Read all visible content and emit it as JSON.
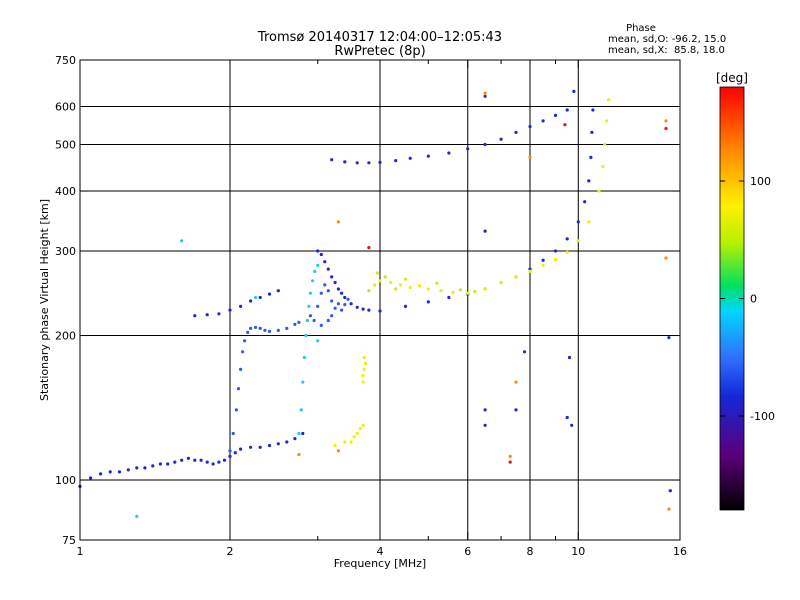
{
  "chart_data": {
    "type": "scatter",
    "title": "Tromsø 20140317 12:04:00–12:05:43",
    "subtitle": "RwPretec (8p)",
    "xlabel": "Frequency [MHz]",
    "ylabel": "Stationary phase Virtual Height [km]",
    "x_scale": "log",
    "y_scale": "log",
    "xlim": [
      1,
      16
    ],
    "ylim": [
      75,
      750
    ],
    "x_ticks": [
      1,
      2,
      4,
      6,
      8,
      10,
      16
    ],
    "x_minor_ticks": [
      3,
      5,
      7,
      9
    ],
    "y_ticks": [
      75,
      100,
      200,
      300,
      400,
      500,
      600,
      750
    ],
    "grid": true,
    "phase_info": {
      "title": "Phase",
      "line_o": "mean, sd,O: -96.2, 15.0",
      "line_x": "mean, sd,X:  85.8, 18.0"
    },
    "colorbar": {
      "label": "[deg]",
      "range": [
        -180,
        180
      ],
      "ticks": [
        100,
        0,
        -100
      ]
    },
    "color_key": {
      "dark_blue": "#1a28d8",
      "blue": "#2f5af0",
      "cyan": "#28c8ea",
      "yellow": "#f0f000",
      "yellow_green": "#c8e628",
      "orange": "#ff8c00",
      "red": "#e01414"
    },
    "series": [
      {
        "name": "",
        "color": "#1a28d8",
        "points": [
          [
            1.0,
            97
          ],
          [
            1.05,
            101
          ],
          [
            1.1,
            103
          ],
          [
            1.15,
            104
          ],
          [
            1.2,
            104
          ],
          [
            1.25,
            105
          ],
          [
            1.3,
            106
          ],
          [
            1.35,
            106
          ],
          [
            1.4,
            107
          ],
          [
            1.45,
            108
          ],
          [
            1.5,
            108
          ],
          [
            1.55,
            109
          ],
          [
            1.6,
            110
          ],
          [
            1.65,
            111
          ],
          [
            1.7,
            110
          ],
          [
            1.75,
            110
          ],
          [
            1.8,
            109
          ],
          [
            1.85,
            108
          ],
          [
            1.9,
            109
          ],
          [
            1.95,
            110
          ],
          [
            2.0,
            112
          ],
          [
            2.05,
            114
          ],
          [
            2.1,
            116
          ],
          [
            2.2,
            117
          ],
          [
            2.3,
            117
          ],
          [
            2.4,
            118
          ],
          [
            2.5,
            119
          ],
          [
            2.6,
            120
          ],
          [
            2.7,
            122
          ],
          [
            2.8,
            125
          ]
        ]
      },
      {
        "name": "",
        "color": "#2f5af0",
        "points": [
          [
            2.0,
            115
          ],
          [
            2.03,
            125
          ],
          [
            2.06,
            140
          ],
          [
            2.08,
            155
          ],
          [
            2.1,
            170
          ],
          [
            2.12,
            185
          ],
          [
            2.14,
            195
          ],
          [
            2.17,
            203
          ],
          [
            2.2,
            207
          ],
          [
            2.25,
            208
          ],
          [
            2.3,
            207
          ],
          [
            2.35,
            205
          ],
          [
            2.4,
            204
          ],
          [
            2.5,
            205
          ],
          [
            2.6,
            207
          ],
          [
            2.7,
            211
          ],
          [
            2.75,
            213
          ]
        ]
      },
      {
        "name": "",
        "color": "#1a28d8",
        "points": [
          [
            1.7,
            220
          ],
          [
            1.8,
            221
          ],
          [
            1.9,
            222
          ],
          [
            2.0,
            226
          ],
          [
            2.1,
            230
          ],
          [
            2.2,
            236
          ],
          [
            2.3,
            240
          ],
          [
            2.4,
            244
          ],
          [
            2.5,
            248
          ]
        ]
      },
      {
        "name": "",
        "color": "#28c8ea",
        "points": [
          [
            2.75,
            125
          ],
          [
            2.78,
            140
          ],
          [
            2.8,
            160
          ],
          [
            2.82,
            180
          ],
          [
            2.84,
            200
          ],
          [
            2.86,
            215
          ],
          [
            2.88,
            230
          ],
          [
            2.9,
            245
          ],
          [
            2.93,
            260
          ],
          [
            2.96,
            272
          ],
          [
            3.0,
            280
          ]
        ]
      },
      {
        "name": "",
        "color": "#1a28d8",
        "points": [
          [
            3.0,
            300
          ],
          [
            3.05,
            295
          ],
          [
            3.1,
            285
          ],
          [
            3.15,
            275
          ],
          [
            3.2,
            265
          ],
          [
            3.25,
            258
          ],
          [
            3.3,
            250
          ],
          [
            3.35,
            245
          ],
          [
            3.4,
            240
          ],
          [
            3.5,
            233
          ],
          [
            3.6,
            229
          ],
          [
            3.7,
            227
          ],
          [
            3.8,
            226
          ],
          [
            4.0,
            225
          ],
          [
            4.5,
            230
          ],
          [
            5.0,
            235
          ],
          [
            5.5,
            240
          ],
          [
            6.0,
            244
          ],
          [
            6.5,
            250
          ],
          [
            7.0,
            258
          ],
          [
            7.5,
            265
          ],
          [
            8.0,
            275
          ],
          [
            8.5,
            287
          ],
          [
            9.0,
            300
          ],
          [
            9.5,
            318
          ],
          [
            10.0,
            345
          ],
          [
            10.3,
            380
          ],
          [
            10.5,
            420
          ],
          [
            10.6,
            470
          ],
          [
            10.65,
            530
          ],
          [
            10.7,
            590
          ]
        ]
      },
      {
        "name": "",
        "color": "#2f5af0",
        "points": [
          [
            2.9,
            220
          ],
          [
            2.95,
            215
          ],
          [
            3.0,
            230
          ],
          [
            3.05,
            245
          ],
          [
            3.1,
            255
          ],
          [
            3.15,
            248
          ],
          [
            3.2,
            236
          ],
          [
            3.25,
            228
          ],
          [
            3.3,
            233
          ],
          [
            3.35,
            226
          ],
          [
            3.05,
            210
          ],
          [
            3.15,
            215
          ],
          [
            3.2,
            220
          ],
          [
            3.4,
            232
          ],
          [
            3.45,
            238
          ]
        ]
      },
      {
        "name": "",
        "color": "#1a28d8",
        "points": [
          [
            3.2,
            465
          ],
          [
            3.4,
            460
          ],
          [
            3.6,
            458
          ],
          [
            3.8,
            458
          ],
          [
            4.0,
            459
          ],
          [
            4.3,
            463
          ],
          [
            4.6,
            468
          ],
          [
            5.0,
            473
          ],
          [
            5.5,
            480
          ],
          [
            6.0,
            490
          ],
          [
            6.5,
            500
          ],
          [
            7.0,
            513
          ],
          [
            7.5,
            530
          ],
          [
            8.0,
            545
          ],
          [
            8.5,
            560
          ],
          [
            9.0,
            575
          ],
          [
            9.5,
            590
          ]
        ]
      },
      {
        "name": "",
        "color": "#f0f000",
        "points": [
          [
            3.9,
            255
          ],
          [
            4.0,
            260
          ],
          [
            4.2,
            258
          ],
          [
            4.4,
            255
          ],
          [
            4.6,
            252
          ],
          [
            4.8,
            254
          ],
          [
            5.0,
            250
          ],
          [
            5.3,
            248
          ],
          [
            5.6,
            246
          ],
          [
            6.0,
            245
          ],
          [
            6.5,
            250
          ],
          [
            7.0,
            258
          ],
          [
            7.5,
            265
          ],
          [
            8.0,
            272
          ],
          [
            8.5,
            280
          ],
          [
            9.0,
            288
          ],
          [
            9.5,
            298
          ],
          [
            10.0,
            315
          ],
          [
            10.5,
            345
          ],
          [
            11.0,
            400
          ],
          [
            11.2,
            450
          ],
          [
            11.3,
            500
          ],
          [
            11.4,
            560
          ],
          [
            11.5,
            620
          ]
        ]
      },
      {
        "name": "",
        "color": "#c8e628",
        "points": [
          [
            3.8,
            248
          ],
          [
            4.1,
            265
          ],
          [
            4.5,
            262
          ],
          [
            5.2,
            257
          ],
          [
            5.8,
            249
          ],
          [
            6.2,
            247
          ],
          [
            3.95,
            270
          ],
          [
            4.3,
            250
          ]
        ]
      },
      {
        "name": "",
        "color": "#f0f000",
        "points": [
          [
            3.5,
            120
          ],
          [
            3.55,
            123
          ],
          [
            3.6,
            125
          ],
          [
            3.65,
            128
          ],
          [
            3.7,
            130
          ],
          [
            3.25,
            118
          ],
          [
            3.4,
            120
          ]
        ]
      },
      {
        "name": "",
        "color": "#f0f000",
        "points": [
          [
            3.7,
            165
          ],
          [
            3.72,
            170
          ],
          [
            3.74,
            175
          ],
          [
            3.72,
            180
          ],
          [
            3.7,
            160
          ]
        ]
      },
      {
        "name": "",
        "color": "#28c8ea",
        "points": [
          [
            1.3,
            84
          ],
          [
            1.6,
            315
          ],
          [
            2.25,
            240
          ],
          [
            3.0,
            195
          ]
        ]
      },
      {
        "name": "",
        "color": "#1a28d8",
        "points": [
          [
            6.5,
            630
          ],
          [
            6.5,
            330
          ],
          [
            6.5,
            140
          ],
          [
            6.5,
            130
          ],
          [
            7.8,
            185
          ],
          [
            7.5,
            140
          ],
          [
            9.5,
            135
          ],
          [
            9.6,
            180
          ],
          [
            9.8,
            645
          ],
          [
            15.2,
            198
          ],
          [
            15.3,
            95
          ],
          [
            9.7,
            130
          ]
        ]
      },
      {
        "name": "",
        "color": "#ff8c00",
        "points": [
          [
            6.5,
            640
          ],
          [
            7.5,
            160
          ],
          [
            8.0,
            470
          ],
          [
            15.0,
            560
          ],
          [
            15.0,
            290
          ],
          [
            3.3,
            115
          ],
          [
            2.75,
            113
          ],
          [
            3.3,
            345
          ],
          [
            7.3,
            112
          ],
          [
            15.2,
            87
          ]
        ]
      },
      {
        "name": "",
        "color": "#e01414",
        "points": [
          [
            15.0,
            540
          ],
          [
            3.8,
            305
          ],
          [
            9.4,
            550
          ],
          [
            7.3,
            109
          ]
        ]
      }
    ]
  }
}
